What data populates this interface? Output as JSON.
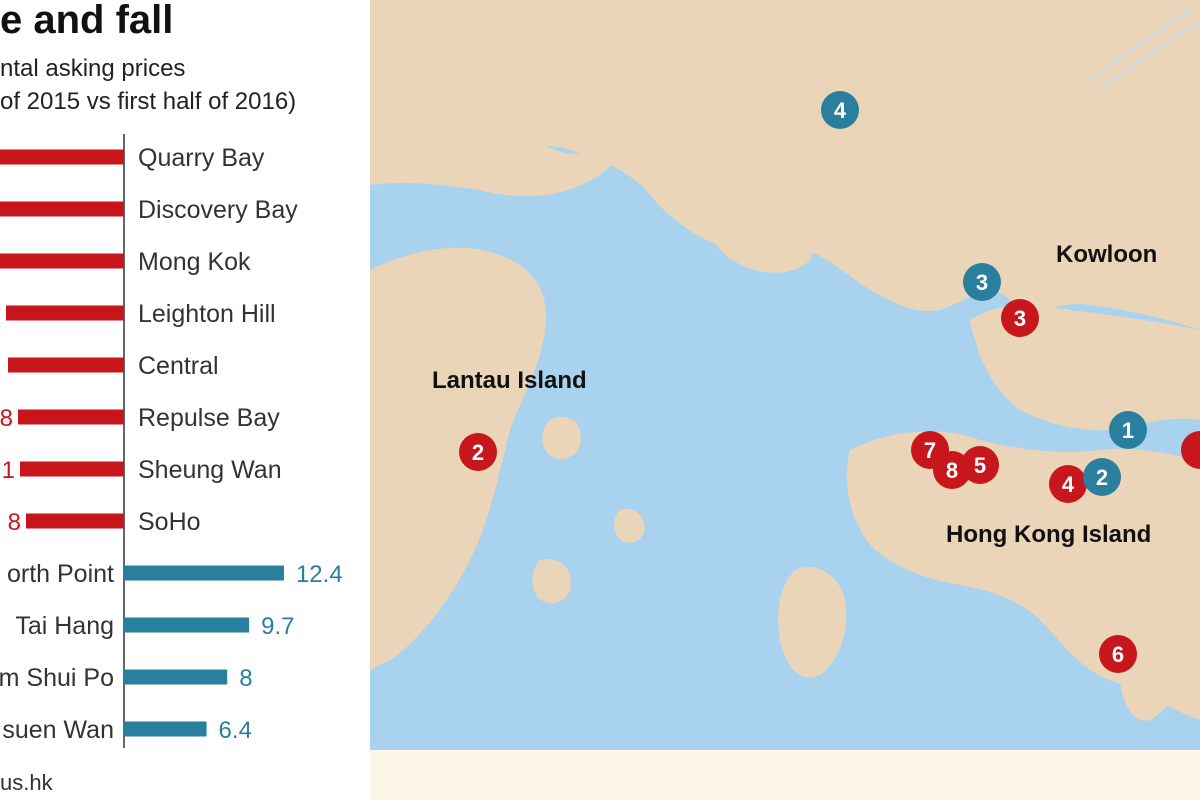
{
  "header": {
    "title": "e and fall",
    "subtitle_line1": "ntal asking prices",
    "subtitle_line2": "of 2015 vs first half of 2016)"
  },
  "source": "us.hk",
  "colors": {
    "decrease": "#c8161d",
    "increase": "#2a7f9e",
    "land": "#ead5b8",
    "sea": "#a9d2ee",
    "axis": "#666666"
  },
  "chart_data": {
    "type": "bar",
    "categories": [
      "Quarry Bay",
      "Discovery Bay",
      "Mong Kok",
      "Leighton Hill",
      "Central",
      "Repulse Bay",
      "Sheung Wan",
      "SoHo",
      "orth Point",
      "Tai Hang",
      "m Shui Po",
      "suen Wan"
    ],
    "visible_value_labels": [
      "",
      "",
      "",
      "",
      "",
      "8",
      "1",
      "8",
      "12.4",
      "9.7",
      "8",
      "6.4"
    ],
    "values": [
      null,
      null,
      null,
      null,
      null,
      null,
      null,
      null,
      12.4,
      9.7,
      8,
      6.4
    ],
    "series_colors": [
      "decrease",
      "decrease",
      "decrease",
      "decrease",
      "decrease",
      "decrease",
      "decrease",
      "decrease",
      "increase",
      "increase",
      "increase",
      "increase"
    ]
  },
  "map": {
    "labels": [
      "Lantau Island",
      "Kowloon",
      "Hong Kong Island"
    ],
    "markers": [
      {
        "number": "4",
        "group": "increase"
      },
      {
        "number": "3",
        "group": "increase"
      },
      {
        "number": "3",
        "group": "decrease"
      },
      {
        "number": "2",
        "group": "decrease"
      },
      {
        "number": "1",
        "group": "increase"
      },
      {
        "number": "7",
        "group": "decrease"
      },
      {
        "number": "8",
        "group": "decrease"
      },
      {
        "number": "5",
        "group": "decrease"
      },
      {
        "number": "4",
        "group": "decrease"
      },
      {
        "number": "2",
        "group": "increase"
      },
      {
        "number": "6",
        "group": "decrease"
      },
      {
        "number": "",
        "group": "decrease"
      }
    ]
  }
}
